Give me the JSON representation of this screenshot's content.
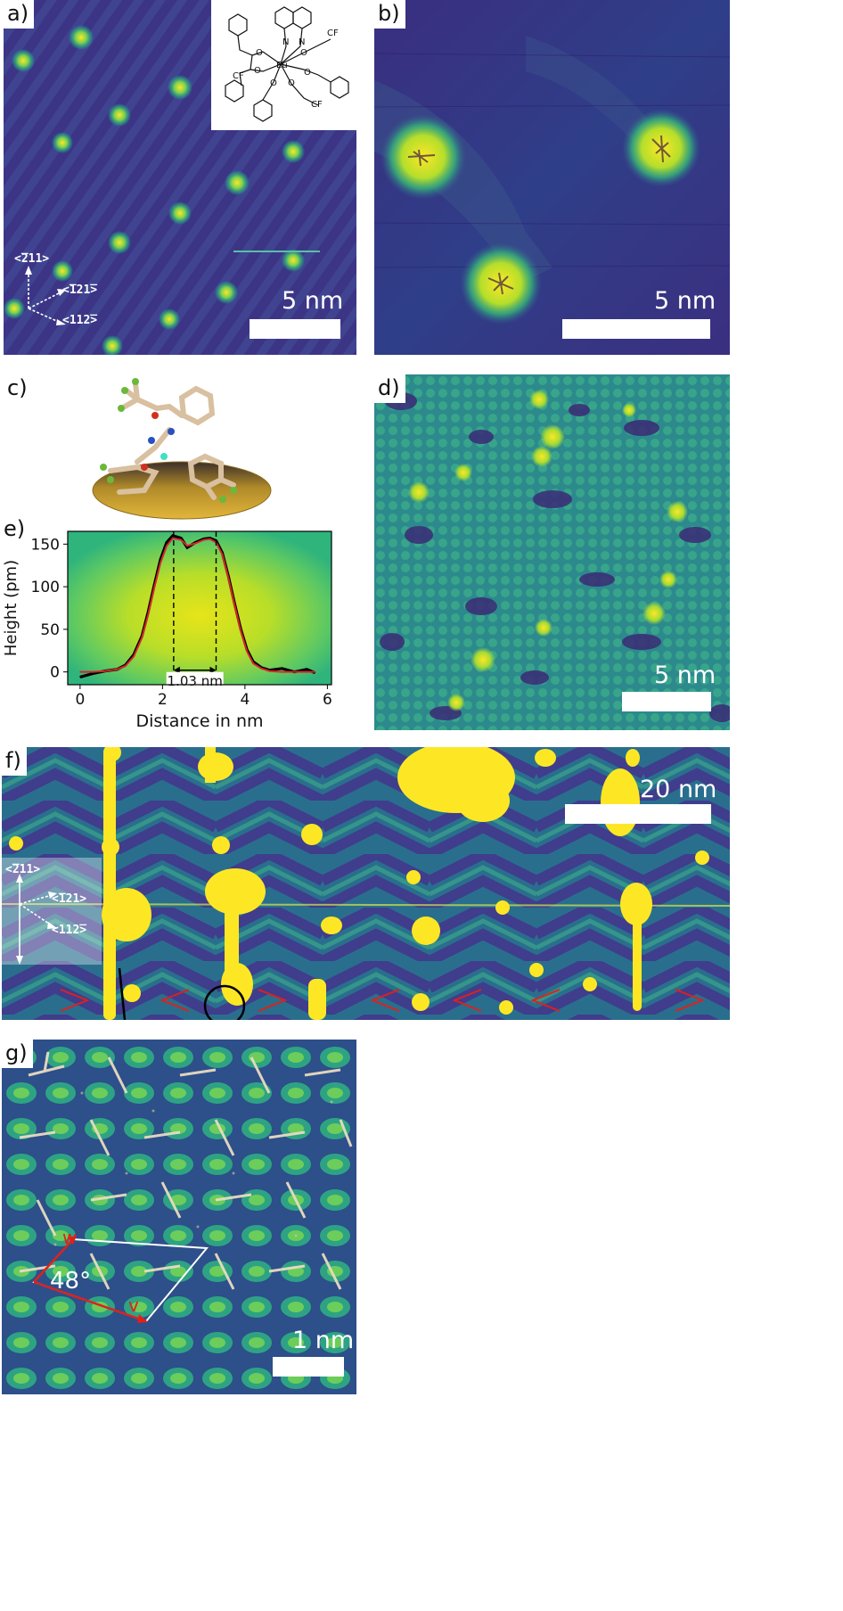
{
  "panels": {
    "a": {
      "label": "a)",
      "scale": "5 nm",
      "directions": [
        "<̅211>",
        "<̅121̅>",
        "<112̅>"
      ],
      "inset_atoms": [
        "Eu",
        "N",
        "N",
        "O",
        "O",
        "O",
        "O",
        "O",
        "O",
        "F",
        "F",
        "F",
        "F",
        "F",
        "F",
        "F",
        "F",
        "F"
      ]
    },
    "b": {
      "label": "b)",
      "scale": "5 nm"
    },
    "c": {
      "label": "c)"
    },
    "d": {
      "label": "d)",
      "scale": "5 nm"
    },
    "e": {
      "label": "e)"
    },
    "f": {
      "label": "f)",
      "scale": "20 nm",
      "directions": [
        "<̅211>",
        "<̅121>",
        "<112̅>"
      ]
    },
    "g": {
      "label": "g)",
      "scale": "1 nm",
      "vector_w": "w",
      "vector_v": "v",
      "angle": "48°"
    }
  },
  "colors": {
    "stm_dark": "#3b1f6e",
    "stm_mid": "#2a7f8e",
    "stm_bright": "#fde725",
    "profile_black": "#000000",
    "profile_red": "#d62728",
    "arrow_red": "#e0201a"
  },
  "chart_data": {
    "type": "line",
    "xlabel": "Distance in nm",
    "ylabel": "Height (pm)",
    "xlim": [
      -0.3,
      6.1
    ],
    "ylim": [
      -15,
      165
    ],
    "xticks": [
      0,
      2,
      4,
      6
    ],
    "yticks": [
      0,
      50,
      100,
      150
    ],
    "annotation": "1.03 nm",
    "dashed_lines_x": [
      2.27,
      3.3
    ],
    "series": [
      {
        "color": "#000000",
        "x": [
          0.0,
          0.3,
          0.6,
          0.9,
          1.1,
          1.3,
          1.5,
          1.65,
          1.8,
          1.95,
          2.1,
          2.25,
          2.45,
          2.6,
          2.8,
          3.0,
          3.15,
          3.3,
          3.45,
          3.6,
          3.75,
          3.9,
          4.05,
          4.2,
          4.4,
          4.6,
          4.9,
          5.2,
          5.5,
          5.7
        ],
        "values": [
          -6,
          -2,
          1,
          3,
          8,
          20,
          42,
          70,
          102,
          132,
          152,
          160,
          157,
          146,
          152,
          156,
          157,
          154,
          140,
          112,
          80,
          50,
          26,
          12,
          5,
          2,
          4,
          0,
          3,
          -1
        ]
      },
      {
        "color": "#d62728",
        "x": [
          0.0,
          0.3,
          0.6,
          0.9,
          1.1,
          1.3,
          1.5,
          1.65,
          1.8,
          1.95,
          2.1,
          2.25,
          2.45,
          2.6,
          2.8,
          3.0,
          3.15,
          3.3,
          3.45,
          3.6,
          3.75,
          3.9,
          4.05,
          4.2,
          4.4,
          4.6,
          4.9,
          5.2,
          5.5,
          5.7
        ],
        "values": [
          0,
          0,
          1,
          3,
          7,
          18,
          40,
          67,
          99,
          128,
          148,
          157,
          155,
          148,
          151,
          155,
          156,
          152,
          138,
          110,
          78,
          48,
          24,
          10,
          4,
          1,
          0,
          0,
          0,
          0
        ]
      }
    ]
  }
}
